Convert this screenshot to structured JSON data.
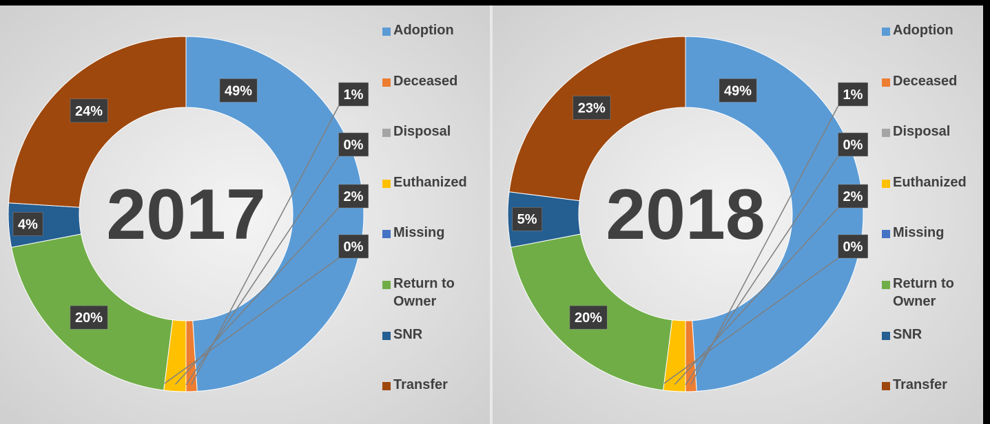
{
  "chart_data": [
    {
      "type": "donut",
      "title": "2017",
      "categories": [
        "Adoption",
        "Deceased",
        "Disposal",
        "Euthanized",
        "Missing",
        "Return to Owner",
        "SNR",
        "Transfer"
      ],
      "values": [
        49,
        1,
        0,
        2,
        0,
        20,
        4,
        24
      ],
      "value_labels": [
        "49%",
        "1%",
        "0%",
        "2%",
        "0%",
        "20%",
        "4%",
        "24%"
      ],
      "colors": [
        "#5b9bd5",
        "#ed7d31",
        "#a5a5a5",
        "#ffc000",
        "#4472c4",
        "#70ad47",
        "#255e91",
        "#9e480e"
      ]
    },
    {
      "type": "donut",
      "title": "2018",
      "categories": [
        "Adoption",
        "Deceased",
        "Disposal",
        "Euthanized",
        "Missing",
        "Return to Owner",
        "SNR",
        "Transfer"
      ],
      "values": [
        49,
        1,
        0,
        2,
        0,
        20,
        5,
        23
      ],
      "value_labels": [
        "49%",
        "1%",
        "0%",
        "2%",
        "0%",
        "20%",
        "5%",
        "23%"
      ],
      "colors": [
        "#5b9bd5",
        "#ed7d31",
        "#a5a5a5",
        "#ffc000",
        "#4472c4",
        "#70ad47",
        "#255e91",
        "#9e480e"
      ]
    }
  ]
}
